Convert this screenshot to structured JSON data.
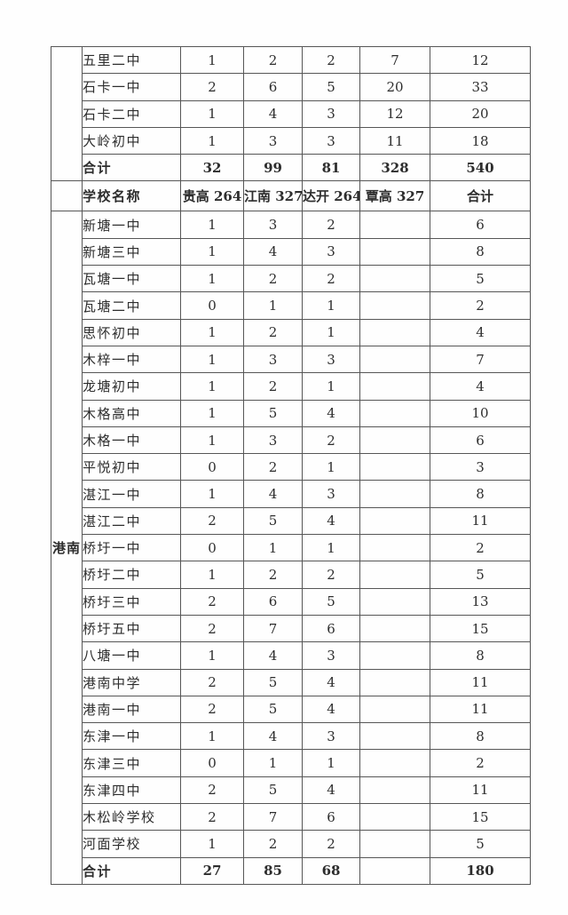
{
  "page": {
    "background": "#fefefe",
    "border_color": "#565656",
    "text_color": "#2d2d2d"
  },
  "table": {
    "top_section": {
      "region_label": "",
      "rows": [
        {
          "school": "五里二中",
          "values": [
            "1",
            "2",
            "2",
            "7",
            "12"
          ]
        },
        {
          "school": "石卡一中",
          "values": [
            "2",
            "6",
            "5",
            "20",
            "33"
          ]
        },
        {
          "school": "石卡二中",
          "values": [
            "1",
            "4",
            "3",
            "12",
            "20"
          ]
        },
        {
          "school": "大岭初中",
          "values": [
            "1",
            "3",
            "3",
            "11",
            "18"
          ]
        }
      ],
      "total_row": {
        "school": "合计",
        "values": [
          "32",
          "99",
          "81",
          "328",
          "540"
        ]
      }
    },
    "header": {
      "school_col": "学校名称",
      "columns": [
        "贵高 264",
        "江南 327",
        "达开 264",
        "覃高 327",
        "合计"
      ]
    },
    "gangnan_section": {
      "region_label": "港南",
      "rows": [
        {
          "school": "新塘一中",
          "values": [
            "1",
            "3",
            "2",
            "",
            "6"
          ]
        },
        {
          "school": "新塘三中",
          "values": [
            "1",
            "4",
            "3",
            "",
            "8"
          ]
        },
        {
          "school": "瓦塘一中",
          "values": [
            "1",
            "2",
            "2",
            "",
            "5"
          ]
        },
        {
          "school": "瓦塘二中",
          "values": [
            "0",
            "1",
            "1",
            "",
            "2"
          ]
        },
        {
          "school": "思怀初中",
          "values": [
            "1",
            "2",
            "1",
            "",
            "4"
          ]
        },
        {
          "school": "木梓一中",
          "values": [
            "1",
            "3",
            "3",
            "",
            "7"
          ]
        },
        {
          "school": "龙塘初中",
          "values": [
            "1",
            "2",
            "1",
            "",
            "4"
          ]
        },
        {
          "school": "木格高中",
          "values": [
            "1",
            "5",
            "4",
            "",
            "10"
          ]
        },
        {
          "school": "木格一中",
          "values": [
            "1",
            "3",
            "2",
            "",
            "6"
          ]
        },
        {
          "school": "平悦初中",
          "values": [
            "0",
            "2",
            "1",
            "",
            "3"
          ]
        },
        {
          "school": "湛江一中",
          "values": [
            "1",
            "4",
            "3",
            "",
            "8"
          ]
        },
        {
          "school": "湛江二中",
          "values": [
            "2",
            "5",
            "4",
            "",
            "11"
          ]
        },
        {
          "school": "桥圩一中",
          "values": [
            "0",
            "1",
            "1",
            "",
            "2"
          ]
        },
        {
          "school": "桥圩二中",
          "values": [
            "1",
            "2",
            "2",
            "",
            "5"
          ]
        },
        {
          "school": "桥圩三中",
          "values": [
            "2",
            "6",
            "5",
            "",
            "13"
          ]
        },
        {
          "school": "桥圩五中",
          "values": [
            "2",
            "7",
            "6",
            "",
            "15"
          ]
        },
        {
          "school": "八塘一中",
          "values": [
            "1",
            "4",
            "3",
            "",
            "8"
          ]
        },
        {
          "school": "港南中学",
          "values": [
            "2",
            "5",
            "4",
            "",
            "11"
          ]
        },
        {
          "school": "港南一中",
          "values": [
            "2",
            "5",
            "4",
            "",
            "11"
          ]
        },
        {
          "school": "东津一中",
          "values": [
            "1",
            "4",
            "3",
            "",
            "8"
          ]
        },
        {
          "school": "东津三中",
          "values": [
            "0",
            "1",
            "1",
            "",
            "2"
          ]
        },
        {
          "school": "东津四中",
          "values": [
            "2",
            "5",
            "4",
            "",
            "11"
          ]
        },
        {
          "school": "木松岭学校",
          "values": [
            "2",
            "7",
            "6",
            "",
            "15"
          ]
        },
        {
          "school": "河面学校",
          "values": [
            "1",
            "2",
            "2",
            "",
            "5"
          ]
        }
      ],
      "total_row": {
        "school": "合计",
        "values": [
          "27",
          "85",
          "68",
          "",
          "180"
        ]
      }
    }
  }
}
